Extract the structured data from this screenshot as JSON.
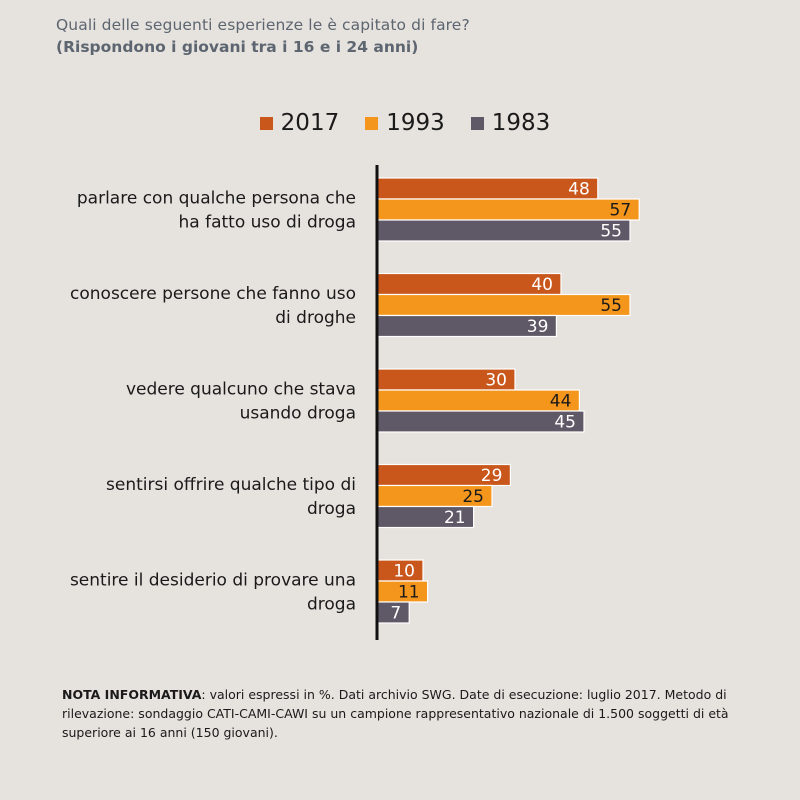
{
  "header": {
    "title": "Quali delle seguenti esperienze le è capitato di fare?",
    "subtitle": "(Rispondono i giovani tra i 16 e i 24 anni)"
  },
  "colors": {
    "2017": "#c9571c",
    "1993": "#f5961c",
    "1983": "#5f5866",
    "axis": "#111111"
  },
  "legend": [
    {
      "name": "2017",
      "color": "#c9571c"
    },
    {
      "name": "1993",
      "color": "#f5961c"
    },
    {
      "name": "1983",
      "color": "#5f5866"
    }
  ],
  "chart_data": {
    "type": "bar",
    "orientation": "horizontal",
    "categories": [
      [
        "parlare con qualche persona che",
        "ha fatto uso di droga"
      ],
      [
        "conoscere persone che fanno uso",
        "di droghe"
      ],
      [
        "vedere qualcuno che stava",
        "usando droga"
      ],
      [
        "sentirsi offrire qualche tipo di",
        "droga"
      ],
      [
        "sentire il desiderio di provare una",
        "droga"
      ]
    ],
    "series": [
      {
        "name": "2017",
        "color": "#c9571c",
        "label_color": "#ffffff",
        "values": [
          48,
          40,
          30,
          29,
          10
        ]
      },
      {
        "name": "1993",
        "color": "#f5961c",
        "label_color": "#1a1a1a",
        "values": [
          57,
          55,
          44,
          25,
          11
        ]
      },
      {
        "name": "1983",
        "color": "#5f5866",
        "label_color": "#ffffff",
        "values": [
          55,
          39,
          45,
          21,
          7
        ]
      }
    ],
    "xlim": [
      0,
      100
    ],
    "legend_position": "top-center",
    "grid": false,
    "xaxis_visible": false
  },
  "footnote": {
    "label": "NOTA INFORMATIVA",
    "text": ": valori espressi in %. Dati archivio SWG. Date di esecuzione: luglio 2017. Metodo di rilevazione: sondaggio CATI-CAMI-CAWI su un campione rappresentativo nazionale di 1.500 soggetti di età superiore ai 16 anni (150 giovani)."
  }
}
